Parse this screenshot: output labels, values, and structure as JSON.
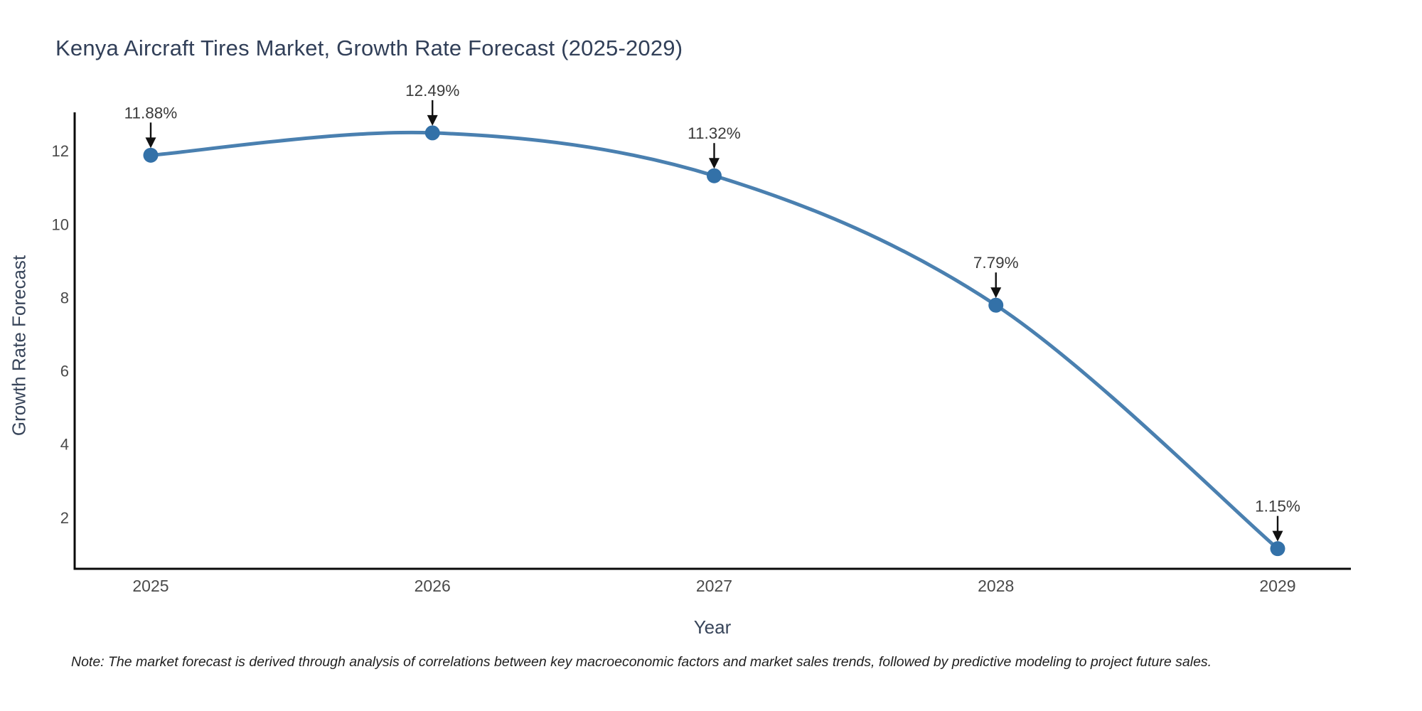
{
  "page": {
    "note": "Note: The market forecast is derived through analysis of correlations between key macroeconomic factors and market sales trends, followed by predictive modeling to project future sales."
  },
  "chart_data": {
    "type": "line",
    "title": "Kenya Aircraft Tires Market, Growth Rate Forecast (2025-2029)",
    "xlabel": "Year",
    "ylabel": "Growth Rate Forecast",
    "categories": [
      "2025",
      "2026",
      "2027",
      "2028",
      "2029"
    ],
    "x": [
      2025,
      2026,
      2027,
      2028,
      2029
    ],
    "values": [
      11.88,
      12.49,
      11.32,
      7.79,
      1.15
    ],
    "point_labels": [
      "11.88%",
      "12.49%",
      "11.32%",
      "7.79%",
      "1.15%"
    ],
    "yticks": [
      2,
      4,
      6,
      8,
      10,
      12
    ],
    "xlim": [
      2024.73,
      2029.26
    ],
    "ylim": [
      0.6,
      13.05
    ],
    "grid": false,
    "legend": "none",
    "annotation_style": "black-down-arrow",
    "colors": {
      "line": "#4a80b0",
      "marker": "#3371a8",
      "axis": "#0a0a0a",
      "tick_text": "#4a4a4a",
      "annotation_text": "#3b3b3b",
      "title_text": "#313f58",
      "axis_label_text": "#38455a",
      "note_text": "#1f1f1f",
      "background": "#ffffff"
    }
  }
}
